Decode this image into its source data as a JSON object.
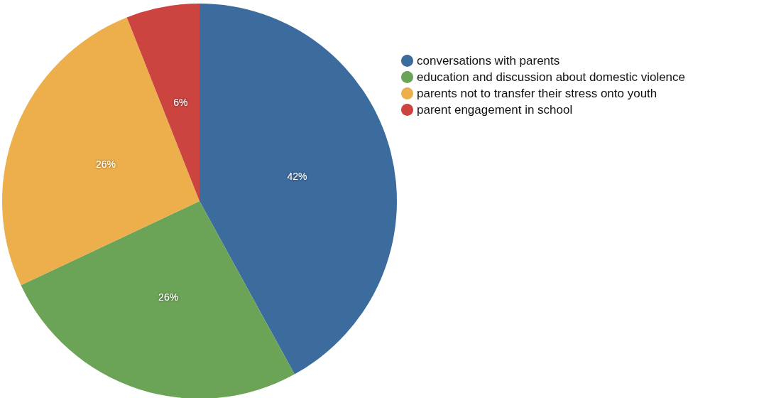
{
  "chart_data": {
    "type": "pie",
    "categories": [
      "conversations with parents",
      "education and discussion about domestic violence",
      "parents not to transfer their stress onto youth",
      "parent engagement in school"
    ],
    "values": [
      42,
      26,
      26,
      6
    ],
    "colors": [
      "#3c6b9d",
      "#6ba357",
      "#edaf4b",
      "#cb4440"
    ],
    "value_labels": [
      "42%",
      "26%",
      "26%",
      "6%"
    ],
    "legend": "top right"
  }
}
